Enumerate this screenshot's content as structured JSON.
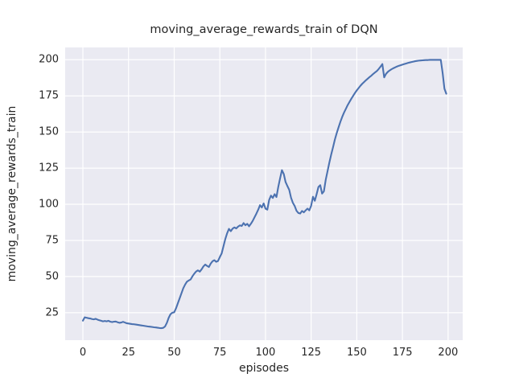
{
  "figure": {
    "title": "moving_average_rewards_train of DQN"
  },
  "chart_data": {
    "type": "line",
    "title": "moving_average_rewards_train of DQN",
    "xlabel": "episodes",
    "ylabel": "moving_average_rewards_train",
    "x_ticks": [
      0,
      25,
      50,
      75,
      100,
      125,
      150,
      175,
      200
    ],
    "y_ticks": [
      25,
      50,
      75,
      100,
      125,
      150,
      175,
      200
    ],
    "xlim": [
      -9.7,
      208.0
    ],
    "ylim": [
      6.0,
      208.5
    ],
    "grid": true,
    "legend_position": "none",
    "style": {
      "line_color": "#4C72B0",
      "plot_background": "#EAEAF2",
      "grid_color": "#FFFFFF",
      "text_color": "#262626",
      "figure_background": "#FFFFFF",
      "line_width": 2.1
    },
    "series": [
      {
        "name": "moving_average_rewards_train",
        "x_start": 0,
        "x_step": 1,
        "y": [
          19.5,
          21.8,
          21.5,
          21.2,
          21.0,
          20.6,
          20.4,
          20.8,
          20.2,
          19.8,
          19.4,
          19.0,
          19.3,
          19.0,
          19.4,
          18.8,
          18.5,
          18.8,
          18.9,
          18.4,
          18.0,
          18.2,
          18.7,
          18.2,
          17.7,
          17.5,
          17.3,
          17.1,
          17.0,
          16.8,
          16.6,
          16.4,
          16.2,
          16.0,
          15.8,
          15.6,
          15.4,
          15.3,
          15.1,
          14.9,
          14.8,
          14.6,
          14.4,
          14.3,
          14.5,
          15.5,
          18.0,
          21.5,
          24.0,
          25.0,
          25.3,
          28.0,
          31.5,
          35.0,
          38.5,
          42.0,
          44.5,
          46.5,
          47.3,
          48.0,
          50.2,
          52.0,
          53.5,
          54.3,
          53.4,
          55.0,
          57.0,
          58.3,
          57.4,
          56.6,
          59.0,
          60.6,
          61.3,
          60.2,
          60.8,
          63.5,
          66.0,
          71.0,
          76.0,
          80.0,
          83.0,
          81.4,
          83.2,
          84.0,
          83.3,
          84.6,
          85.4,
          85.0,
          87.0,
          85.5,
          86.5,
          84.8,
          86.5,
          88.5,
          91.0,
          93.5,
          96.2,
          99.4,
          97.8,
          100.6,
          97.0,
          96.3,
          103.0,
          106.0,
          104.4,
          107.0,
          105.0,
          112.0,
          118.0,
          123.6,
          121.0,
          115.4,
          112.6,
          110.0,
          104.5,
          101.0,
          98.8,
          95.5,
          94.0,
          93.6,
          95.4,
          94.4,
          95.8,
          97.0,
          95.8,
          99.0,
          105.2,
          102.4,
          107.0,
          112.0,
          113.2,
          107.4,
          109.0,
          117.0,
          123.0,
          129.0,
          134.5,
          139.5,
          144.8,
          149.2,
          153.2,
          157.0,
          160.4,
          163.4,
          166.0,
          168.6,
          170.8,
          173.0,
          175.0,
          177.0,
          178.8,
          180.4,
          182.0,
          183.4,
          184.6,
          185.8,
          186.9,
          188.0,
          189.0,
          190.2,
          191.2,
          192.2,
          193.6,
          195.2,
          197.0,
          187.8,
          190.2,
          191.6,
          192.6,
          193.4,
          194.1,
          194.7,
          195.3,
          195.8,
          196.2,
          196.6,
          197.0,
          197.4,
          197.8,
          198.1,
          198.4,
          198.7,
          199.0,
          199.2,
          199.4,
          199.5,
          199.6,
          199.7,
          199.8,
          199.8,
          199.9,
          199.9,
          199.9,
          199.9,
          199.9,
          199.9,
          199.9,
          191.0,
          180.0,
          176.5
        ]
      }
    ]
  }
}
